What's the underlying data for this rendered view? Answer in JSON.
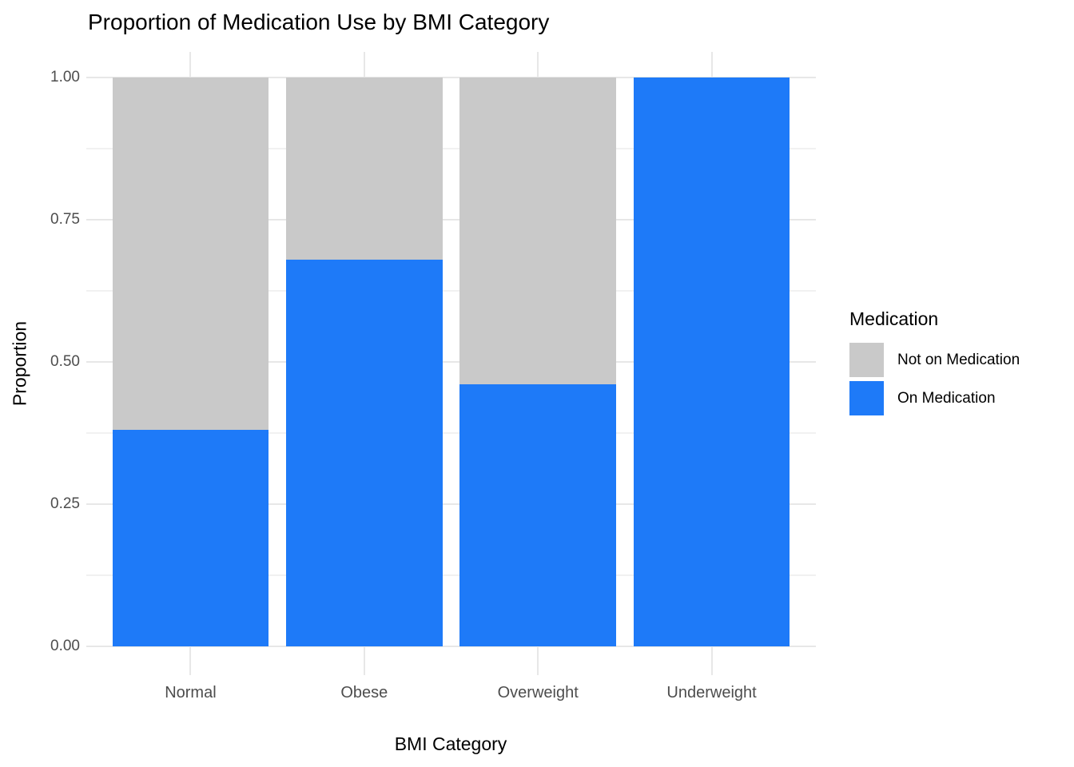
{
  "chart_data": {
    "type": "bar",
    "stacked": true,
    "title": "Proportion of Medication Use by BMI Category",
    "xlabel": "BMI Category",
    "ylabel": "Proportion",
    "categories": [
      "Normal",
      "Obese",
      "Overweight",
      "Underweight"
    ],
    "series": [
      {
        "name": "On Medication",
        "color": "#1E7AF8",
        "values": [
          0.38,
          0.68,
          0.46,
          1.0
        ]
      },
      {
        "name": "Not on Medication",
        "color": "#C9C9C9",
        "values": [
          0.62,
          0.32,
          0.54,
          0.0
        ]
      }
    ],
    "ylim": [
      0,
      1
    ],
    "yticks": {
      "values": [
        0,
        0.25,
        0.5,
        0.75,
        1
      ],
      "labels": [
        "0.00",
        "0.25",
        "0.50",
        "0.75",
        "1.00"
      ]
    },
    "minor_yticks": [
      0.125,
      0.375,
      0.625,
      0.875
    ],
    "grid": "on",
    "legend": {
      "title": "Medication",
      "position": "right",
      "entries": [
        {
          "label": "Not on Medication",
          "color": "#C9C9C9"
        },
        {
          "label": "On Medication",
          "color": "#1E7AF8"
        }
      ]
    },
    "colors": {
      "grid_major": "#E7E7E7",
      "grid_minor": "#F1F1F1",
      "tick_text": "#4D4D4D",
      "title_text": "#000000"
    }
  }
}
